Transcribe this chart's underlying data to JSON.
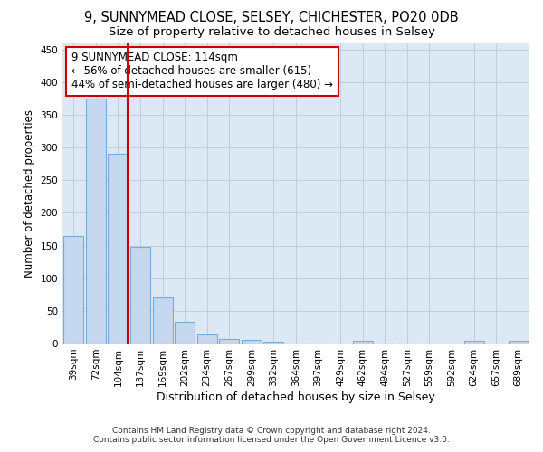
{
  "title": "9, SUNNYMEAD CLOSE, SELSEY, CHICHESTER, PO20 0DB",
  "subtitle": "Size of property relative to detached houses in Selsey",
  "xlabel": "Distribution of detached houses by size in Selsey",
  "ylabel": "Number of detached properties",
  "footer_line1": "Contains HM Land Registry data © Crown copyright and database right 2024.",
  "footer_line2": "Contains public sector information licensed under the Open Government Licence v3.0.",
  "categories": [
    "39sqm",
    "72sqm",
    "104sqm",
    "137sqm",
    "169sqm",
    "202sqm",
    "234sqm",
    "267sqm",
    "299sqm",
    "332sqm",
    "364sqm",
    "397sqm",
    "429sqm",
    "462sqm",
    "494sqm",
    "527sqm",
    "559sqm",
    "592sqm",
    "624sqm",
    "657sqm",
    "689sqm"
  ],
  "bar_values": [
    165,
    375,
    290,
    148,
    70,
    33,
    14,
    7,
    6,
    3,
    0,
    0,
    0,
    4,
    0,
    0,
    0,
    0,
    4,
    0,
    4
  ],
  "bar_color": "#c5d8ef",
  "bar_edge_color": "#7badd4",
  "vline_color": "#cc0000",
  "annotation_text": "9 SUNNYMEAD CLOSE: 114sqm\n← 56% of detached houses are smaller (615)\n44% of semi-detached houses are larger (480) →",
  "annotation_box_color": "#ffffff",
  "annotation_box_edge": "#cc0000",
  "annotation_fontsize": 8.5,
  "ylim": [
    0,
    460
  ],
  "yticks": [
    0,
    50,
    100,
    150,
    200,
    250,
    300,
    350,
    400,
    450
  ],
  "background_color": "#dde8f5",
  "title_fontsize": 10.5,
  "subtitle_fontsize": 9.5,
  "xlabel_fontsize": 9,
  "ylabel_fontsize": 8.5,
  "tick_fontsize": 7.5
}
